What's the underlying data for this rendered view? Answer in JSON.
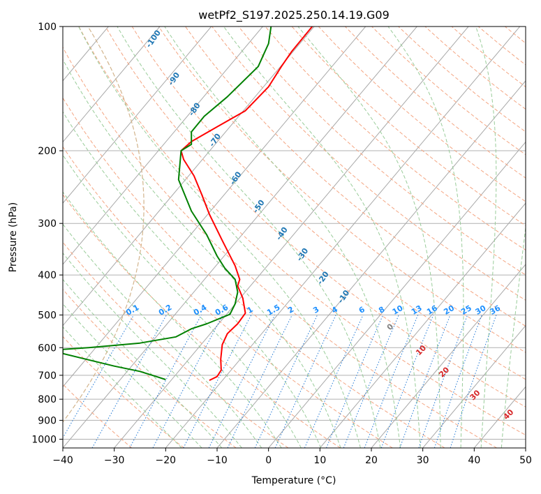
{
  "chart_data": {
    "type": "line",
    "title": "wetPf2_S197.2025.250.14.19.G09",
    "xlabel": "Temperature (°C)",
    "ylabel": "Pressure (hPa)",
    "xlim": [
      -40,
      50
    ],
    "ylim": [
      1050,
      100
    ],
    "x_ticks": [
      -40,
      -30,
      -20,
      -10,
      0,
      10,
      20,
      30,
      40,
      50
    ],
    "x_tick_labels": [
      "−40",
      "−30",
      "−20",
      "−10",
      "0",
      "10",
      "20",
      "30",
      "40",
      "50"
    ],
    "y_ticks": [
      100,
      200,
      300,
      400,
      500,
      600,
      700,
      800,
      900,
      1000
    ],
    "y_tick_labels": [
      "100",
      "200",
      "300",
      "400",
      "500",
      "600",
      "700",
      "800",
      "900",
      "1000"
    ],
    "series": [
      {
        "name": "temperature",
        "color": "#ff0000",
        "points": [
          [
            -11.5,
            720
          ],
          [
            -10,
            705
          ],
          [
            -9.2,
            680
          ],
          [
            -9.3,
            640
          ],
          [
            -9.0,
            590
          ],
          [
            -8.0,
            555
          ],
          [
            -6.0,
            525
          ],
          [
            -4.5,
            495
          ],
          [
            -5.0,
            455
          ],
          [
            -6.0,
            425
          ],
          [
            -5.6,
            410
          ],
          [
            -6.5,
            380
          ],
          [
            -9.0,
            330
          ],
          [
            -11.5,
            285
          ],
          [
            -13.0,
            255
          ],
          [
            -14.5,
            230
          ],
          [
            -16.5,
            210
          ],
          [
            -17.0,
            200
          ],
          [
            -15.0,
            190
          ],
          [
            -10.0,
            175
          ],
          [
            -4.5,
            160
          ],
          [
            0,
            140
          ],
          [
            2.5,
            125
          ],
          [
            4.5,
            115
          ],
          [
            8.5,
            100
          ]
        ]
      },
      {
        "name": "dewpoint",
        "color": "#008000",
        "points": [
          [
            -20.0,
            717
          ],
          [
            -21.5,
            707
          ],
          [
            -25.0,
            685
          ],
          [
            -30.0,
            665
          ],
          [
            -40.0,
            620
          ],
          [
            -40.0,
            606
          ],
          [
            -35.0,
            600
          ],
          [
            -25.0,
            585
          ],
          [
            -18.0,
            565
          ],
          [
            -15.0,
            540
          ],
          [
            -12.0,
            525
          ],
          [
            -7.5,
            498
          ],
          [
            -6.5,
            470
          ],
          [
            -6.0,
            440
          ],
          [
            -6.5,
            410
          ],
          [
            -8.5,
            385
          ],
          [
            -10.0,
            360
          ],
          [
            -12.0,
            320
          ],
          [
            -15.0,
            280
          ],
          [
            -17.5,
            235
          ],
          [
            -17.0,
            200
          ],
          [
            -15.0,
            193
          ],
          [
            -15.0,
            180
          ],
          [
            -12.5,
            165
          ],
          [
            -8.0,
            148
          ],
          [
            -2.0,
            125
          ],
          [
            0,
            110
          ],
          [
            0.5,
            100
          ]
        ]
      }
    ],
    "dry_adiabat_labels": [
      "-100",
      "-90",
      "-80",
      "-70",
      "-60",
      "-50",
      "-40",
      "-30",
      "-20",
      "-10"
    ],
    "mixing_ratio_labels": [
      "0.1",
      "0.2",
      "0.4",
      "0.6",
      "1",
      "1.5",
      "2",
      "3",
      "4",
      "6",
      "8",
      "10",
      "13",
      "16",
      "20",
      "25",
      "30",
      "36"
    ],
    "moist_adiabat_labels": [
      "0",
      "10",
      "20",
      "30",
      "40"
    ],
    "colors": {
      "grid": "#b0b0b0",
      "skew_isotherm": "#a8a8a8",
      "dry_adiabat": "#f4a582",
      "moist_adiabat": "#99cc99",
      "mixing_ratio": "#1f77d4",
      "dry_label": "#1f77b4",
      "mixing_label": "#1e90ff",
      "moist_label": "#d62728",
      "zero_label": "#808080",
      "tan_curve": "#d2b48c"
    }
  }
}
